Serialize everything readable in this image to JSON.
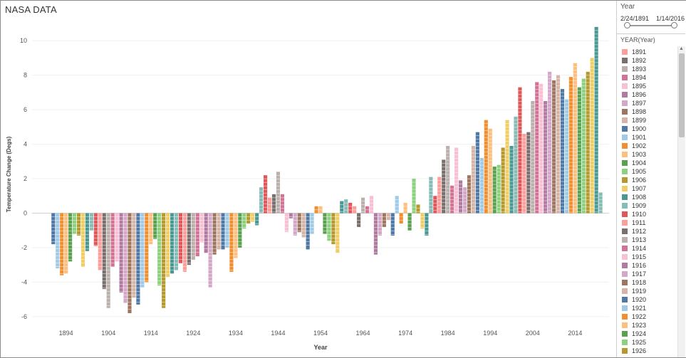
{
  "dashboard": {
    "title": "NASA DATA"
  },
  "filter": {
    "title": "Year",
    "range_min": "2/24/1891",
    "range_max": "1/14/2016",
    "range_fraction": [
      0,
      1
    ]
  },
  "legend": {
    "title": "YEAR(Year)",
    "items": [
      {
        "label": "1891",
        "color": "#ff9d9a"
      },
      {
        "label": "1892",
        "color": "#79706e"
      },
      {
        "label": "1893",
        "color": "#bab0ac"
      },
      {
        "label": "1894",
        "color": "#d37295"
      },
      {
        "label": "1895",
        "color": "#fabfd2"
      },
      {
        "label": "1896",
        "color": "#b07aa1"
      },
      {
        "label": "1897",
        "color": "#d4a6c8"
      },
      {
        "label": "1898",
        "color": "#9d7660"
      },
      {
        "label": "1899",
        "color": "#d7b5a6"
      },
      {
        "label": "1900",
        "color": "#4e79a7"
      },
      {
        "label": "1901",
        "color": "#a0cbe8"
      },
      {
        "label": "1902",
        "color": "#f28e2b"
      },
      {
        "label": "1903",
        "color": "#ffbe7d"
      },
      {
        "label": "1904",
        "color": "#59a14f"
      },
      {
        "label": "1905",
        "color": "#8cd17d"
      },
      {
        "label": "1906",
        "color": "#b6992d"
      },
      {
        "label": "1907",
        "color": "#f1ce63"
      },
      {
        "label": "1908",
        "color": "#499894"
      },
      {
        "label": "1909",
        "color": "#86bcb6"
      },
      {
        "label": "1910",
        "color": "#e15759"
      },
      {
        "label": "1911",
        "color": "#ff9d9a"
      },
      {
        "label": "1912",
        "color": "#79706e"
      },
      {
        "label": "1913",
        "color": "#bab0ac"
      },
      {
        "label": "1914",
        "color": "#d37295"
      },
      {
        "label": "1915",
        "color": "#fabfd2"
      },
      {
        "label": "1916",
        "color": "#b07aa1"
      },
      {
        "label": "1917",
        "color": "#d4a6c8"
      },
      {
        "label": "1918",
        "color": "#9d7660"
      },
      {
        "label": "1919",
        "color": "#d7b5a6"
      },
      {
        "label": "1920",
        "color": "#4e79a7"
      },
      {
        "label": "1921",
        "color": "#a0cbe8"
      },
      {
        "label": "1922",
        "color": "#f28e2b"
      },
      {
        "label": "1923",
        "color": "#ffbe7d"
      },
      {
        "label": "1924",
        "color": "#59a14f"
      },
      {
        "label": "1925",
        "color": "#8cd17d"
      },
      {
        "label": "1926",
        "color": "#b6992d"
      }
    ]
  },
  "chart_data": {
    "type": "bar",
    "xlabel": "Year",
    "ylabel": "Temperature Change (Degs)",
    "ylim": [
      -6.5,
      11
    ],
    "yticks": [
      -6,
      -4,
      -2,
      0,
      2,
      4,
      6,
      8,
      10
    ],
    "xticks": [
      1894,
      1904,
      1914,
      1924,
      1934,
      1944,
      1954,
      1964,
      1974,
      1984,
      1994,
      2004,
      2014
    ],
    "grid": "horizontal",
    "palette": [
      "#4e79a7",
      "#a0cbe8",
      "#f28e2b",
      "#ffbe7d",
      "#59a14f",
      "#8cd17d",
      "#b6992d",
      "#f1ce63",
      "#499894",
      "#86bcb6",
      "#e15759",
      "#ff9d9a",
      "#79706e",
      "#bab0ac",
      "#d37295",
      "#fabfd2",
      "#b07aa1",
      "#d4a6c8",
      "#9d7660",
      "#d7b5a6"
    ],
    "x_start": 1891,
    "values": [
      -1.8,
      -3.2,
      -3.6,
      -3.5,
      -2.8,
      -1.2,
      -1.3,
      -3.1,
      -2.2,
      -1.0,
      -1.9,
      -3.3,
      -4.4,
      -5.5,
      -3.1,
      -2.8,
      -4.6,
      -5.2,
      -5.8,
      -4.9,
      -5.3,
      -4.3,
      -4.0,
      -1.8,
      -1.5,
      -4.2,
      -5.5,
      -3.7,
      -3.5,
      -3.3,
      -2.9,
      -3.4,
      -3.0,
      -2.7,
      -2.5,
      -1.7,
      -2.3,
      -4.3,
      -2.4,
      -2.1,
      -2.1,
      -2.0,
      -3.4,
      -2.6,
      -2.0,
      -0.9,
      -0.6,
      -0.5,
      -0.7,
      1.5,
      2.2,
      0.9,
      1.1,
      2.4,
      1.1,
      -1.1,
      -0.3,
      -1.3,
      -1.1,
      -1.4,
      -2.1,
      -1.2,
      0.4,
      0.4,
      -1.2,
      -1.6,
      -1.8,
      -2.3,
      0.7,
      0.8,
      0.6,
      0.4,
      -0.8,
      0.9,
      0.4,
      1.0,
      -2.4,
      -1.3,
      -0.8,
      -0.4,
      -1.3,
      1.0,
      -0.6,
      0.6,
      -1.0,
      2.0,
      0.5,
      -0.9,
      -1.3,
      2.1,
      1.0,
      2.1,
      3.1,
      3.9,
      1.6,
      3.8,
      1.9,
      1.5,
      2.2,
      3.9,
      4.7,
      3.2,
      5.4,
      4.9,
      2.7,
      2.8,
      3.8,
      5.4,
      3.9,
      5.6,
      7.3,
      4.6,
      4.7,
      6.5,
      7.6,
      7.5,
      6.5,
      8.2,
      7.7,
      8.0,
      7.2,
      6.6,
      7.9,
      8.7,
      7.3,
      7.8,
      8.2,
      9.0,
      10.8,
      1.2
    ]
  }
}
